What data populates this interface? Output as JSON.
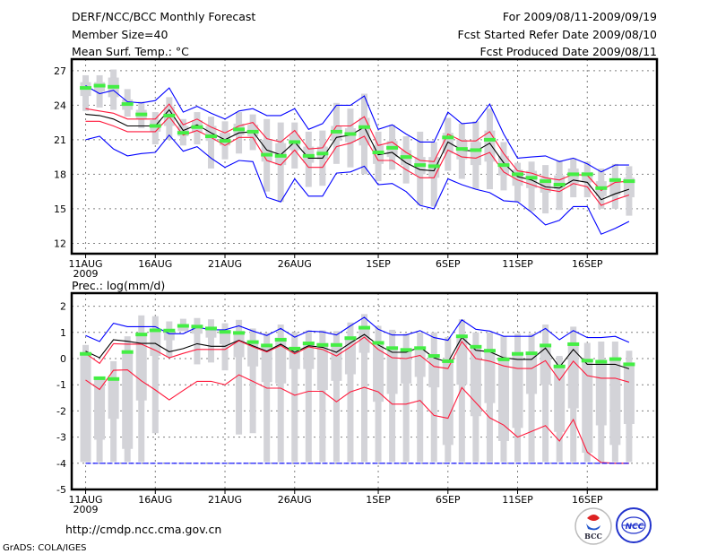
{
  "header": {
    "title": "DERF/NCC/BCC Monthly Forecast",
    "member_size": "Member Size=40",
    "variable": "Mean Surf. Temp.: °C",
    "period": "For 2009/08/11-2009/09/19",
    "refer_date": "Fcst Started Refer Date 2009/08/10",
    "produced_date": "Fcst Produced Date 2009/08/11"
  },
  "footer": {
    "url": "http://cmdp.ncc.cma.gov.cn",
    "credit": "GrADS: COLA/IGES",
    "logo_bcc": "BCC",
    "logo_ncc": "NCC"
  },
  "colors": {
    "mean": "#000000",
    "red": "#ff1a3c",
    "blue": "#0000ff",
    "obs": "#44ee44",
    "box": "#d3d3d8",
    "grid": "#808080"
  },
  "chart_data": [
    {
      "type": "line",
      "title": "Mean Surf. Temp.: °C",
      "xlabel": "",
      "ylabel": "",
      "start_date": "2009-08-11",
      "days": 40,
      "x_ticks": [
        {
          "day": 0,
          "label": "11AUG"
        },
        {
          "day": 5,
          "label": "16AUG"
        },
        {
          "day": 10,
          "label": "21AUG"
        },
        {
          "day": 15,
          "label": "26AUG"
        },
        {
          "day": 21,
          "label": "1SEP"
        },
        {
          "day": 26,
          "label": "6SEP"
        },
        {
          "day": 31,
          "label": "11SEP"
        },
        {
          "day": 36,
          "label": "16SEP"
        }
      ],
      "year_label": "2009",
      "y_ticks": [
        12,
        15,
        18,
        21,
        24,
        27
      ],
      "xlim": [
        -1,
        41
      ],
      "ylim": [
        11.1,
        28.0
      ],
      "grid": true,
      "series": [
        {
          "name": "ensemble_mean",
          "color_key": "mean",
          "values": [
            23.2,
            23.1,
            22.8,
            22.2,
            22.2,
            22.2,
            23.6,
            21.8,
            22.3,
            21.6,
            21.0,
            21.6,
            21.7,
            20.1,
            19.7,
            20.8,
            19.4,
            19.4,
            21.2,
            21.4,
            22.1,
            19.7,
            19.9,
            19.0,
            18.4,
            18.3,
            20.8,
            20.1,
            20.0,
            20.7,
            19.0,
            17.8,
            17.5,
            16.9,
            16.8,
            17.5,
            17.3,
            15.8,
            16.3,
            16.7
          ]
        },
        {
          "name": "red_upper",
          "color_key": "red",
          "values": [
            23.7,
            23.5,
            23.3,
            22.8,
            22.8,
            22.8,
            24.1,
            22.3,
            22.8,
            22.1,
            21.6,
            22.2,
            22.5,
            21.1,
            20.8,
            21.8,
            20.2,
            20.3,
            22.2,
            22.2,
            23.0,
            20.5,
            20.8,
            19.9,
            19.2,
            19.1,
            21.5,
            20.9,
            20.9,
            21.7,
            19.8,
            18.3,
            18.1,
            17.7,
            17.5,
            18.0,
            17.9,
            16.6,
            17.3,
            17.4
          ]
        },
        {
          "name": "red_lower",
          "color_key": "red",
          "values": [
            22.6,
            22.6,
            22.2,
            21.7,
            21.7,
            21.7,
            23.0,
            21.4,
            21.8,
            21.2,
            20.5,
            21.2,
            21.2,
            19.2,
            18.8,
            20.1,
            18.6,
            18.6,
            20.4,
            20.7,
            21.3,
            19.2,
            19.2,
            18.4,
            17.7,
            17.7,
            20.1,
            19.5,
            19.4,
            19.9,
            18.2,
            17.5,
            17.1,
            16.7,
            16.5,
            17.2,
            16.9,
            15.3,
            15.8,
            16.2
          ]
        },
        {
          "name": "blue_upper",
          "color_key": "blue",
          "values": [
            25.7,
            25.0,
            25.3,
            24.3,
            24.2,
            24.4,
            25.5,
            23.4,
            23.9,
            23.3,
            22.8,
            23.5,
            23.7,
            23.1,
            23.1,
            23.7,
            21.9,
            22.4,
            24.0,
            24.0,
            24.8,
            21.9,
            22.3,
            21.5,
            20.8,
            20.8,
            23.4,
            22.4,
            22.5,
            24.1,
            21.5,
            19.4,
            19.5,
            19.6,
            19.1,
            19.4,
            18.9,
            18.2,
            18.8,
            18.8
          ]
        },
        {
          "name": "blue_lower",
          "color_key": "blue",
          "values": [
            21.0,
            21.3,
            20.2,
            19.6,
            19.8,
            19.9,
            21.4,
            20.0,
            20.4,
            19.4,
            18.6,
            19.2,
            19.1,
            16.0,
            15.6,
            17.6,
            16.1,
            16.1,
            18.1,
            18.2,
            18.7,
            17.1,
            17.2,
            16.5,
            15.3,
            15.0,
            17.6,
            17.1,
            16.7,
            16.4,
            15.7,
            15.6,
            14.7,
            13.6,
            14.0,
            15.2,
            15.2,
            12.8,
            13.3,
            13.9
          ]
        },
        {
          "name": "observed",
          "color_key": "obs",
          "values": [
            25.5,
            25.7,
            25.6,
            24.1,
            23.2,
            22.2,
            23.1,
            21.6,
            22.1,
            21.3,
            20.9,
            21.9,
            21.7,
            19.7,
            19.6,
            20.8,
            19.6,
            19.8,
            21.7,
            21.5,
            22.1,
            19.9,
            20.3,
            19.5,
            18.8,
            18.7,
            21.2,
            20.2,
            20.1,
            21.0,
            18.8,
            18.0,
            17.7,
            17.4,
            17.1,
            18.0,
            18.0,
            16.8,
            17.5,
            17.4
          ]
        }
      ],
      "boxes": [
        [
          23.5,
          26.6,
          24.8,
          26.0
        ],
        [
          23.8,
          26.6,
          25.2,
          26.0
        ],
        [
          23.6,
          27.1,
          24.7,
          26.4
        ],
        [
          23.0,
          25.4,
          23.6,
          24.5
        ],
        [
          22.0,
          24.3,
          22.8,
          23.6
        ],
        [
          20.6,
          23.4,
          21.7,
          22.7
        ],
        [
          21.0,
          24.7,
          22.2,
          23.9
        ],
        [
          20.5,
          22.8,
          21.3,
          22.2
        ],
        [
          20.6,
          23.4,
          21.6,
          22.7
        ],
        [
          18.5,
          23.0,
          20.9,
          22.2
        ],
        [
          19.3,
          22.6,
          20.5,
          21.6
        ],
        [
          19.8,
          23.4,
          21.4,
          22.4
        ],
        [
          20.1,
          23.2,
          21.3,
          22.3
        ],
        [
          16.5,
          22.8,
          19.1,
          21.0
        ],
        [
          15.6,
          22.5,
          18.8,
          20.7
        ],
        [
          18.5,
          22.5,
          20.1,
          21.4
        ],
        [
          16.9,
          21.7,
          19.0,
          20.4
        ],
        [
          17.0,
          21.8,
          19.3,
          20.4
        ],
        [
          18.9,
          24.2,
          20.9,
          22.2
        ],
        [
          18.6,
          23.7,
          20.8,
          22.0
        ],
        [
          18.0,
          25.0,
          20.5,
          22.9
        ],
        [
          17.4,
          21.7,
          18.9,
          20.5
        ],
        [
          18.4,
          22.3,
          19.5,
          20.9
        ],
        [
          17.2,
          21.3,
          18.8,
          20.1
        ],
        [
          15.3,
          21.7,
          18.0,
          19.5
        ],
        [
          15.2,
          20.8,
          17.7,
          19.5
        ],
        [
          18.3,
          22.9,
          19.8,
          21.6
        ],
        [
          17.6,
          22.4,
          19.3,
          21.0
        ],
        [
          16.7,
          22.6,
          18.8,
          20.8
        ],
        [
          16.7,
          23.7,
          19.1,
          21.8
        ],
        [
          16.6,
          20.8,
          17.9,
          19.6
        ],
        [
          15.6,
          19.0,
          17.0,
          18.4
        ],
        [
          14.8,
          19.1,
          16.8,
          18.3
        ],
        [
          14.6,
          18.8,
          16.4,
          17.7
        ],
        [
          14.9,
          19.2,
          16.7,
          17.9
        ],
        [
          16.0,
          19.4,
          17.2,
          18.5
        ],
        [
          16.0,
          19.1,
          17.3,
          18.2
        ],
        [
          15.0,
          18.5,
          16.1,
          17.4
        ],
        [
          15.0,
          18.9,
          16.2,
          17.6
        ],
        [
          14.4,
          18.7,
          16.0,
          17.7
        ]
      ],
      "boxes_format": [
        "min",
        "max",
        "lower_quartile",
        "upper_quartile"
      ]
    },
    {
      "type": "line",
      "title": "Prec.: log(mm/d)",
      "xlabel": "",
      "ylabel": "",
      "start_date": "2009-08-11",
      "days": 40,
      "x_ticks": [
        {
          "day": 0,
          "label": "11AUG"
        },
        {
          "day": 5,
          "label": "16AUG"
        },
        {
          "day": 10,
          "label": "21AUG"
        },
        {
          "day": 15,
          "label": "26AUG"
        },
        {
          "day": 21,
          "label": "1SEP"
        },
        {
          "day": 26,
          "label": "6SEP"
        },
        {
          "day": 31,
          "label": "11SEP"
        },
        {
          "day": 36,
          "label": "16SEP"
        }
      ],
      "year_label": "2009",
      "y_ticks": [
        -5,
        -4,
        -3,
        -2,
        -1,
        0,
        1,
        2
      ],
      "xlim": [
        -1,
        41
      ],
      "ylim": [
        -5,
        2.5
      ],
      "grid": true,
      "series": [
        {
          "name": "ensemble_mean",
          "color_key": "mean",
          "values": [
            0.28,
            0.03,
            0.72,
            0.66,
            0.58,
            0.58,
            0.26,
            0.38,
            0.57,
            0.47,
            0.47,
            0.7,
            0.49,
            0.28,
            0.55,
            0.24,
            0.49,
            0.43,
            0.24,
            0.6,
            0.92,
            0.52,
            0.24,
            0.24,
            0.43,
            0.03,
            -0.14,
            0.81,
            0.32,
            0.26,
            0.03,
            -0.03,
            -0.03,
            0.4,
            -0.33,
            0.35,
            -0.22,
            -0.22,
            -0.22,
            -0.39
          ]
        },
        {
          "name": "red_upper",
          "color_key": "red",
          "values": [
            0.2,
            -0.18,
            0.57,
            0.55,
            0.55,
            0.32,
            0.03,
            0.2,
            0.35,
            0.35,
            0.35,
            0.68,
            0.45,
            0.25,
            0.5,
            0.18,
            0.45,
            0.35,
            0.1,
            0.45,
            0.82,
            0.35,
            0.03,
            0.0,
            0.12,
            -0.3,
            -0.38,
            0.65,
            0.0,
            -0.1,
            -0.28,
            -0.38,
            -0.38,
            -0.08,
            -0.83,
            -0.1,
            -0.65,
            -0.75,
            -0.75,
            -0.9
          ]
        },
        {
          "name": "red_lower",
          "color_key": "red",
          "values": [
            -0.82,
            -1.18,
            -0.45,
            -0.43,
            -0.85,
            -1.2,
            -1.58,
            -1.22,
            -0.87,
            -0.87,
            -1.0,
            -0.62,
            -0.87,
            -1.13,
            -1.13,
            -1.4,
            -1.25,
            -1.25,
            -1.65,
            -1.27,
            -1.1,
            -1.27,
            -1.74,
            -1.74,
            -1.6,
            -2.17,
            -2.28,
            -1.11,
            -1.68,
            -2.26,
            -2.54,
            -3.0,
            -2.78,
            -2.56,
            -3.15,
            -2.33,
            -3.58,
            -3.97,
            -4.0,
            -4.0
          ]
        },
        {
          "name": "blue_upper",
          "color_key": "blue",
          "values": [
            0.88,
            0.65,
            1.35,
            1.22,
            1.22,
            1.22,
            0.95,
            0.95,
            1.2,
            1.1,
            1.1,
            1.25,
            1.05,
            0.88,
            1.15,
            0.82,
            1.05,
            1.02,
            0.9,
            1.25,
            1.58,
            1.12,
            0.9,
            0.9,
            1.07,
            0.8,
            0.7,
            1.48,
            1.12,
            1.05,
            0.85,
            0.85,
            0.85,
            1.15,
            0.72,
            1.07,
            0.8,
            0.8,
            0.85,
            0.62
          ]
        },
        {
          "name": "blue_lower",
          "color_key": "blue",
          "values": [
            -4,
            -4,
            -4,
            -4,
            -4,
            -4,
            -4,
            -4,
            -4,
            -4,
            -4,
            -4,
            -4,
            -4,
            -4,
            -4,
            -4,
            -4,
            -4,
            -4,
            -4,
            -4,
            -4,
            -4,
            -4,
            -4,
            -4,
            -4,
            -4,
            -4,
            -4,
            -4,
            -4,
            -4,
            -4,
            -4,
            -4,
            -4,
            -4,
            -4
          ]
        },
        {
          "name": "observed",
          "color_key": "obs",
          "values": [
            0.18,
            -0.75,
            -0.78,
            0.25,
            0.92,
            1.08,
            1.07,
            1.25,
            1.22,
            1.15,
            1.02,
            0.98,
            0.63,
            0.5,
            0.72,
            0.38,
            0.58,
            0.52,
            0.52,
            0.78,
            1.18,
            0.6,
            0.4,
            0.33,
            0.4,
            0.1,
            -0.1,
            0.85,
            0.45,
            0.3,
            -0.03,
            0.18,
            0.2,
            0.5,
            -0.3,
            0.55,
            -0.08,
            -0.12,
            -0.02,
            -0.22
          ]
        }
      ],
      "boxes": [
        [
          -3.95,
          0.52,
          -3.95,
          0.15
        ],
        [
          -3.95,
          -0.7,
          -3.1,
          -0.75
        ],
        [
          -3.95,
          -0.1,
          -2.3,
          -0.75
        ],
        [
          -3.95,
          0.85,
          -3.45,
          0.25
        ],
        [
          -3.95,
          1.65,
          -1.6,
          0.9
        ],
        [
          -2.85,
          1.62,
          0.1,
          1.1
        ],
        [
          0.05,
          1.42,
          0.7,
          1.05
        ],
        [
          1.05,
          1.52,
          1.05,
          1.3
        ],
        [
          -0.22,
          1.55,
          0.95,
          1.3
        ],
        [
          -0.15,
          1.5,
          0.8,
          1.2
        ],
        [
          -0.45,
          1.35,
          0.55,
          1.05
        ],
        [
          -2.9,
          1.48,
          0.05,
          1.05
        ],
        [
          -2.85,
          1.15,
          -0.3,
          0.7
        ],
        [
          -3.95,
          0.98,
          -0.9,
          0.55
        ],
        [
          -3.95,
          1.3,
          -0.95,
          0.8
        ],
        [
          -3.95,
          1.0,
          -0.4,
          0.45
        ],
        [
          -3.95,
          1.08,
          -0.4,
          0.65
        ],
        [
          -3.95,
          1.08,
          -1.2,
          0.6
        ],
        [
          -3.95,
          1.05,
          -0.85,
          0.6
        ],
        [
          -3.95,
          1.38,
          -0.6,
          0.85
        ],
        [
          -3.95,
          1.7,
          0.22,
          1.25
        ],
        [
          -3.95,
          1.25,
          -1.65,
          0.65
        ],
        [
          -3.95,
          1.1,
          -1.35,
          0.45
        ],
        [
          -3.95,
          0.95,
          -0.95,
          0.4
        ],
        [
          -3.95,
          1.0,
          -0.7,
          0.45
        ],
        [
          -3.95,
          1.0,
          -1.1,
          0.15
        ],
        [
          -3.95,
          0.82,
          -3.3,
          0.0
        ],
        [
          -3.95,
          1.5,
          -1.0,
          0.9
        ],
        [
          -3.95,
          1.0,
          -2.2,
          0.5
        ],
        [
          -3.95,
          1.0,
          -1.7,
          0.35
        ],
        [
          -3.95,
          0.85,
          -3.15,
          0.05
        ],
        [
          -3.95,
          0.95,
          -2.65,
          0.25
        ],
        [
          -3.95,
          0.95,
          -1.35,
          0.25
        ],
        [
          -3.95,
          1.3,
          -1.0,
          0.55
        ],
        [
          -3.95,
          0.1,
          -2.8,
          -0.25
        ],
        [
          -3.95,
          1.22,
          -1.9,
          0.6
        ],
        [
          -3.95,
          0.6,
          -3.6,
          -0.05
        ],
        [
          -3.95,
          0.65,
          -2.55,
          -0.1
        ],
        [
          -3.95,
          0.65,
          -3.3,
          0.0
        ],
        [
          -3.95,
          0.3,
          -2.5,
          -0.15
        ]
      ],
      "boxes_format": [
        "min",
        "max",
        "lower_quartile",
        "upper_quartile"
      ]
    }
  ]
}
